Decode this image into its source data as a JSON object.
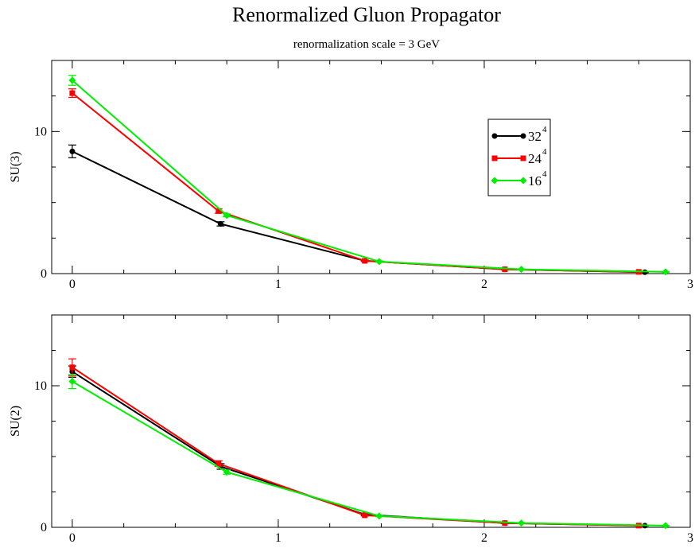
{
  "chart_data": [
    {
      "type": "line",
      "title": "Renormalized Gluon Propagator",
      "subtitle": "renormalization scale = 3 GeV",
      "xlabel": "",
      "ylabel": "SU(3)",
      "xlim": [
        -0.1,
        3
      ],
      "ylim": [
        0,
        15
      ],
      "xticks": [
        0,
        1,
        2,
        3
      ],
      "yticks": [
        0,
        10
      ],
      "legend": {
        "placement": "upper-right",
        "frame": true
      },
      "series": [
        {
          "name": "32",
          "exponent": "4",
          "color": "#000000",
          "marker": "circle",
          "x": [
            0.0,
            0.72,
            1.42,
            2.1,
            2.78
          ],
          "y": [
            8.6,
            3.5,
            0.9,
            0.3,
            0.1
          ],
          "err": [
            0.45,
            0.15,
            0.05,
            0.03,
            0.02
          ]
        },
        {
          "name": "24",
          "exponent": "4",
          "color": "#ff0000",
          "marker": "square",
          "x": [
            0.0,
            0.71,
            1.42,
            2.1,
            2.75
          ],
          "y": [
            12.7,
            4.4,
            0.9,
            0.3,
            0.12
          ],
          "err": [
            0.3,
            0.15,
            0.05,
            0.03,
            0.02
          ]
        },
        {
          "name": "16",
          "exponent": "4",
          "color": "#00ee00",
          "marker": "diamond",
          "x": [
            0.0,
            0.75,
            1.49,
            2.18,
            2.88
          ],
          "y": [
            13.6,
            4.1,
            0.85,
            0.3,
            0.12
          ],
          "err": [
            0.35,
            0.1,
            0.05,
            0.03,
            0.02
          ]
        }
      ]
    },
    {
      "type": "line",
      "title": "",
      "xlabel": "",
      "ylabel": "SU(2)",
      "xlim": [
        -0.1,
        3
      ],
      "ylim": [
        0,
        15
      ],
      "xticks": [
        0,
        1,
        2,
        3
      ],
      "yticks": [
        0,
        10
      ],
      "series": [
        {
          "name": "32",
          "exponent": "4",
          "color": "#000000",
          "marker": "circle",
          "x": [
            0.0,
            0.72,
            1.42,
            2.1,
            2.78
          ],
          "y": [
            11.0,
            4.3,
            0.9,
            0.3,
            0.12
          ],
          "err": [
            0.4,
            0.2,
            0.05,
            0.03,
            0.02
          ]
        },
        {
          "name": "24",
          "exponent": "4",
          "color": "#ff0000",
          "marker": "square",
          "x": [
            0.0,
            0.71,
            1.42,
            2.1,
            2.75
          ],
          "y": [
            11.3,
            4.5,
            0.85,
            0.3,
            0.12
          ],
          "err": [
            0.6,
            0.2,
            0.05,
            0.03,
            0.02
          ]
        },
        {
          "name": "16",
          "exponent": "4",
          "color": "#00ee00",
          "marker": "diamond",
          "x": [
            0.0,
            0.75,
            1.49,
            2.18,
            2.88
          ],
          "y": [
            10.3,
            3.9,
            0.8,
            0.3,
            0.12
          ],
          "err": [
            0.5,
            0.15,
            0.05,
            0.03,
            0.02
          ]
        }
      ]
    }
  ]
}
